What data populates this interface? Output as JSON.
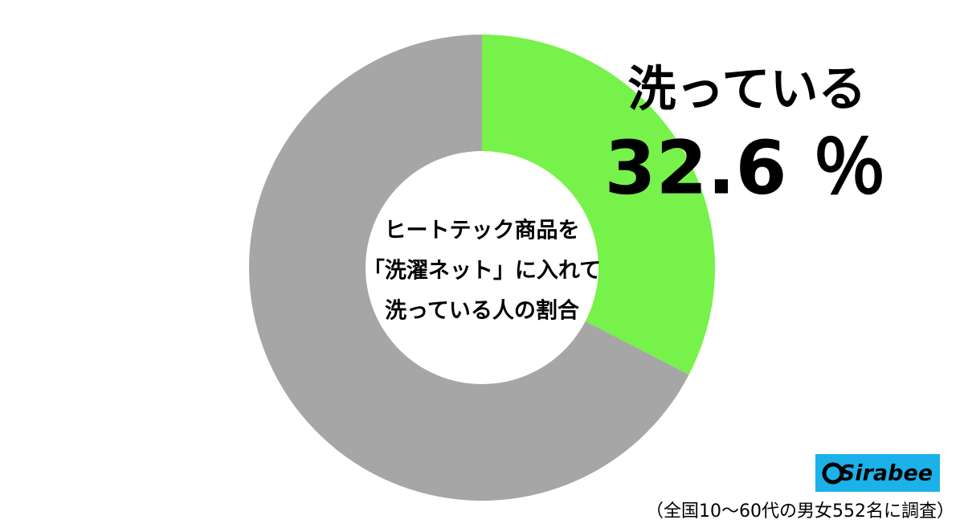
{
  "chart_data": {
    "type": "donut",
    "center_text": [
      "ヒートテック商品を",
      "「洗濯ネット」に入れて",
      "洗っている人の割合"
    ],
    "categories": [
      "洗っている",
      null
    ],
    "values": [
      32.6,
      67.4
    ],
    "value_labels": [
      "32.6 ％",
      null
    ],
    "colors": [
      "#77f24a",
      "#a6a6a6"
    ],
    "logo": "Sirabee",
    "footnote": "（全国10〜60代の男女552名に調査）"
  }
}
